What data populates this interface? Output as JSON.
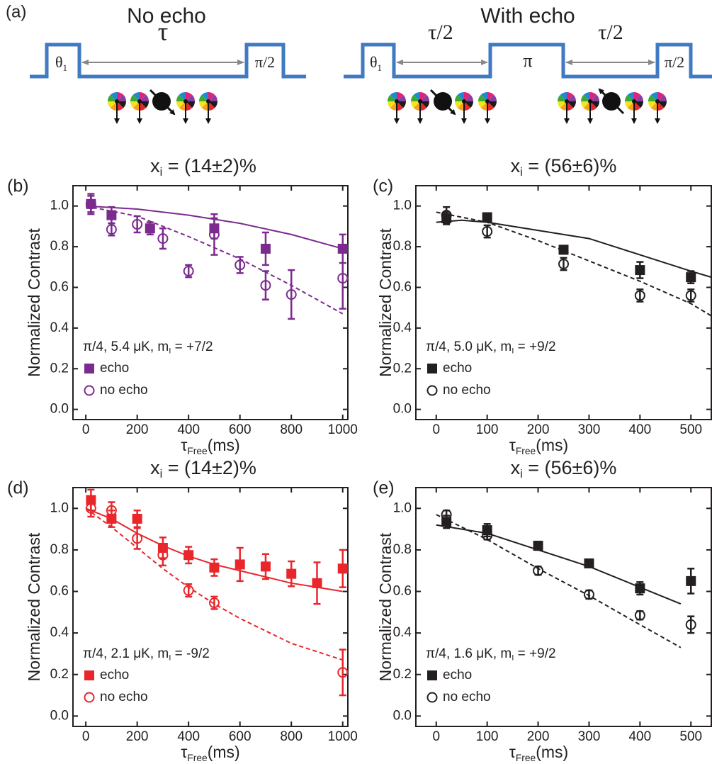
{
  "diagram": {
    "label": "(a)",
    "left": {
      "title": "No echo",
      "tau": "τ",
      "theta": "θ",
      "theta_sub": "1",
      "end": "π/2"
    },
    "right": {
      "title": "With echo",
      "tau_left": "τ/2",
      "middle": "π",
      "tau_right": "τ/2",
      "theta": "θ",
      "theta_sub": "1",
      "end": "π/2"
    }
  },
  "chart_data": [
    {
      "type": "scatter",
      "label": "(b)",
      "title": [
        "x",
        "i",
        " = (14±2)%"
      ],
      "y_label": "Normalized Contrast",
      "x_label": [
        "τ",
        "Free",
        "(ms)"
      ],
      "annotation": [
        "π/4, 5.4 μK, m",
        "I",
        " = +7/2"
      ],
      "xlim": [
        -50,
        1020
      ],
      "xticks": [
        0,
        200,
        400,
        600,
        800,
        1000
      ],
      "ylim": [
        -0.05,
        1.1
      ],
      "yticks": [
        {
          "value": 0,
          "label": "0.0"
        },
        0.2,
        0.4,
        0.6,
        0.8,
        {
          "value": 1,
          "label": "1.0"
        }
      ],
      "series": [
        {
          "name": "echo",
          "color": "#7b2b8e",
          "marker": "square",
          "x": [
            20,
            100,
            250,
            500,
            700,
            1000
          ],
          "values": [
            1.01,
            0.955,
            0.89,
            0.89,
            0.79,
            0.79
          ],
          "errors": [
            0.04,
            0.04,
            0.03,
            0.05,
            0.08,
            0.07
          ]
        },
        {
          "name": "no echo",
          "color": "#7b2b8e",
          "marker": "circle",
          "x": [
            20,
            100,
            200,
            300,
            400,
            500,
            600,
            700,
            800,
            1000
          ],
          "values": [
            1.01,
            0.885,
            0.91,
            0.84,
            0.68,
            0.86,
            0.71,
            0.61,
            0.565,
            0.645
          ],
          "errors": [
            0.05,
            0.03,
            0.04,
            0.05,
            0.03,
            0.1,
            0.04,
            0.07,
            0.12,
            0.15
          ]
        }
      ],
      "fits": [
        {
          "color": "#7b2b8e",
          "dashed": false,
          "x": [
            0,
            200,
            400,
            600,
            800,
            1000
          ],
          "values": [
            1.0,
            0.985,
            0.955,
            0.915,
            0.86,
            0.79
          ]
        },
        {
          "color": "#7b2b8e",
          "dashed": true,
          "x": [
            0,
            200,
            400,
            600,
            800,
            1000
          ],
          "values": [
            1.0,
            0.95,
            0.85,
            0.74,
            0.61,
            0.47
          ]
        }
      ]
    },
    {
      "type": "scatter",
      "label": "(c)",
      "title": [
        "x",
        "i",
        " = (56±6)%"
      ],
      "y_label": "Normalized Contrast",
      "x_label": [
        "τ",
        "Free",
        "(ms)"
      ],
      "annotation": [
        "π/4, 5.0 μK, m",
        "I",
        " = +9/2"
      ],
      "xlim": [
        -40,
        540
      ],
      "xticks": [
        0,
        100,
        200,
        300,
        400,
        500
      ],
      "ylim": [
        -0.05,
        1.1
      ],
      "yticks": [
        {
          "value": 0,
          "label": "0.0"
        },
        0.2,
        0.4,
        0.6,
        0.8,
        {
          "value": 1,
          "label": "1.0"
        }
      ],
      "series": [
        {
          "name": "echo",
          "color": "#231f20",
          "marker": "square",
          "x": [
            20,
            100,
            250,
            400,
            500
          ],
          "values": [
            0.94,
            0.945,
            0.785,
            0.685,
            0.65
          ],
          "errors": [
            0.03,
            0.02,
            0.02,
            0.04,
            0.03
          ]
        },
        {
          "name": "no echo",
          "color": "#231f20",
          "marker": "circle",
          "x": [
            20,
            100,
            250,
            400,
            500
          ],
          "values": [
            0.955,
            0.875,
            0.715,
            0.56,
            0.56
          ],
          "errors": [
            0.04,
            0.03,
            0.03,
            0.03,
            0.03
          ]
        }
      ],
      "fits": [
        {
          "color": "#231f20",
          "dashed": false,
          "x": [
            0,
            50,
            100,
            150,
            200,
            250,
            300,
            350,
            400,
            450,
            500,
            540
          ],
          "values": [
            0.92,
            0.93,
            0.92,
            0.9,
            0.88,
            0.86,
            0.84,
            0.8,
            0.76,
            0.72,
            0.68,
            0.65
          ]
        },
        {
          "color": "#231f20",
          "dashed": true,
          "x": [
            0,
            100,
            200,
            300,
            400,
            500,
            540
          ],
          "values": [
            0.97,
            0.92,
            0.83,
            0.73,
            0.63,
            0.52,
            0.46
          ]
        }
      ]
    },
    {
      "type": "scatter",
      "label": "(d)",
      "title": [
        "x",
        "i",
        " = (14±2)%"
      ],
      "y_label": "Normalized Contrast",
      "x_label": [
        "τ",
        "Free",
        "(ms)"
      ],
      "annotation": [
        "π/4, 2.1 μK, m",
        "I",
        " = -9/2"
      ],
      "xlim": [
        -50,
        1020
      ],
      "xticks": [
        0,
        200,
        400,
        600,
        800,
        1000
      ],
      "ylim": [
        -0.05,
        1.1
      ],
      "yticks": [
        {
          "value": 0,
          "label": "0.0"
        },
        0.2,
        0.4,
        0.6,
        0.8,
        {
          "value": 1,
          "label": "1.0"
        }
      ],
      "series": [
        {
          "name": "echo",
          "color": "#e8262b",
          "marker": "square",
          "x": [
            20,
            100,
            200,
            300,
            400,
            500,
            600,
            700,
            800,
            900,
            1000
          ],
          "values": [
            1.04,
            0.95,
            0.95,
            0.81,
            0.775,
            0.715,
            0.73,
            0.72,
            0.685,
            0.64,
            0.71
          ],
          "errors": [
            0.05,
            0.04,
            0.04,
            0.05,
            0.04,
            0.04,
            0.08,
            0.06,
            0.06,
            0.1,
            0.09
          ]
        },
        {
          "name": "no echo",
          "color": "#e8262b",
          "marker": "circle",
          "x": [
            20,
            100,
            200,
            300,
            400,
            500,
            1000
          ],
          "values": [
            1.0,
            0.99,
            0.855,
            0.775,
            0.605,
            0.545,
            0.21
          ],
          "errors": [
            0.04,
            0.04,
            0.05,
            0.05,
            0.03,
            0.03,
            0.11
          ]
        }
      ],
      "fits": [
        {
          "color": "#e8262b",
          "dashed": false,
          "x": [
            0,
            100,
            200,
            300,
            400,
            500,
            600,
            700,
            800,
            900,
            1000
          ],
          "values": [
            1.0,
            0.95,
            0.88,
            0.82,
            0.77,
            0.73,
            0.7,
            0.67,
            0.64,
            0.62,
            0.6
          ]
        },
        {
          "color": "#e8262b",
          "dashed": true,
          "x": [
            0,
            100,
            200,
            300,
            400,
            500,
            600,
            700,
            800,
            900,
            1000
          ],
          "values": [
            1.0,
            0.91,
            0.81,
            0.71,
            0.62,
            0.54,
            0.47,
            0.41,
            0.35,
            0.31,
            0.27
          ]
        }
      ]
    },
    {
      "type": "scatter",
      "label": "(e)",
      "title": [
        "x",
        "i",
        " = (56±6)%"
      ],
      "y_label": "Normalized Contrast",
      "x_label": [
        "τ",
        "Free",
        "(ms)"
      ],
      "annotation": [
        "π/4, 1.6 μK, m",
        "I",
        " = +9/2"
      ],
      "xlim": [
        -40,
        540
      ],
      "xticks": [
        0,
        100,
        200,
        300,
        400,
        500
      ],
      "ylim": [
        -0.05,
        1.1
      ],
      "yticks": [
        {
          "value": 0,
          "label": "0.0"
        },
        0.2,
        0.4,
        0.6,
        0.8,
        {
          "value": 1,
          "label": "1.0"
        }
      ],
      "series": [
        {
          "name": "echo",
          "color": "#231f20",
          "marker": "square",
          "x": [
            20,
            100,
            200,
            300,
            400,
            500
          ],
          "values": [
            0.935,
            0.895,
            0.82,
            0.735,
            0.615,
            0.65
          ],
          "errors": [
            0.03,
            0.03,
            0.02,
            0.015,
            0.03,
            0.06
          ]
        },
        {
          "name": "no echo",
          "color": "#231f20",
          "marker": "circle",
          "x": [
            20,
            100,
            200,
            300,
            400,
            500
          ],
          "values": [
            0.97,
            0.87,
            0.7,
            0.585,
            0.485,
            0.44
          ],
          "errors": [
            0.02,
            0.02,
            0.02,
            0.02,
            0.02,
            0.04
          ]
        }
      ],
      "fits": [
        {
          "color": "#231f20",
          "dashed": false,
          "x": [
            0,
            100,
            200,
            300,
            400,
            480
          ],
          "values": [
            0.92,
            0.88,
            0.8,
            0.72,
            0.62,
            0.54
          ]
        },
        {
          "color": "#231f20",
          "dashed": true,
          "x": [
            0,
            100,
            200,
            300,
            400,
            480
          ],
          "values": [
            0.97,
            0.85,
            0.71,
            0.58,
            0.44,
            0.33
          ]
        }
      ]
    }
  ]
}
